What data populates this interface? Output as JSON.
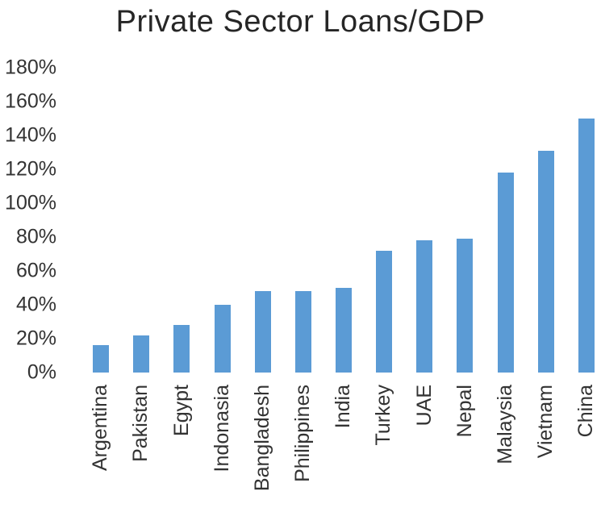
{
  "chart_data": {
    "type": "bar",
    "title": "Private Sector Loans/GDP",
    "categories": [
      "Argentina",
      "Pakistan",
      "Egypt",
      "Indonasia",
      "Bangladesh",
      "Philippines",
      "India",
      "Turkey",
      "UAE",
      "Nepal",
      "Malaysia",
      "Vietnam",
      "China"
    ],
    "values": [
      16,
      22,
      28,
      40,
      48,
      48,
      50,
      72,
      78,
      79,
      118,
      131,
      150
    ],
    "unit": "%",
    "xlabel": "",
    "ylabel": "",
    "ylim": [
      0,
      180
    ],
    "ytick_step": 20,
    "yticks_top_to_bottom": [
      "180%",
      "160%",
      "140%",
      "120%",
      "100%",
      "80%",
      "60%",
      "40%",
      "20%",
      "0%"
    ],
    "grid": false,
    "legend": false,
    "bar_color": "#5B9BD5",
    "title_color": "#262626",
    "axis_text_color": "#333333",
    "background_color": "#FFFFFF"
  }
}
